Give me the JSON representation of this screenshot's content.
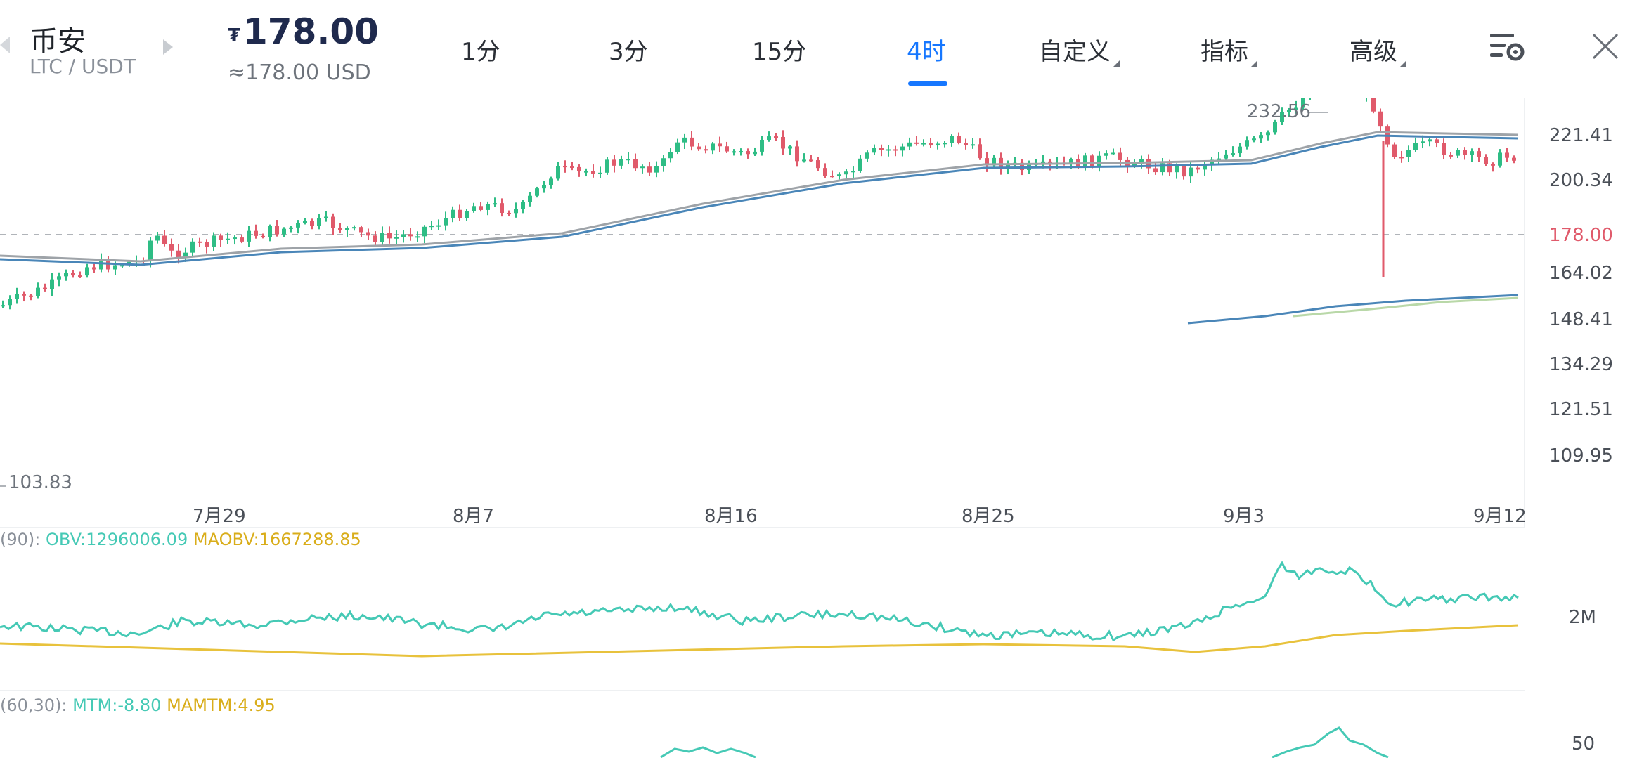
{
  "header": {
    "exchange": "币安",
    "pair": "LTC / USDT",
    "currency_symbol": "₮",
    "price": "178.00",
    "price_usd": "≈178.00 USD",
    "tabs": [
      {
        "label": "1分",
        "active": false
      },
      {
        "label": "3分",
        "active": false
      },
      {
        "label": "15分",
        "active": false
      },
      {
        "label": "4时",
        "active": true
      },
      {
        "label": "自定义",
        "active": false,
        "dropdown": true
      },
      {
        "label": "指标",
        "active": false,
        "dropdown": true
      },
      {
        "label": "高级",
        "active": false,
        "dropdown": true
      }
    ],
    "icons": [
      "chart-settings-icon",
      "close-icon"
    ]
  },
  "main_chart": {
    "y_ticks": [
      "221.41",
      "200.34",
      "178.00",
      "164.02",
      "148.41",
      "134.29",
      "121.51",
      "109.95"
    ],
    "x_ticks": [
      "7月29",
      "8月7",
      "8月16",
      "8月25",
      "9月3",
      "9月12"
    ],
    "high_label": "232.56",
    "low_label": "103.83",
    "current_price_tag": "178.00",
    "colors": {
      "up": "#2ebd85",
      "down": "#e05a6b",
      "ma_gray": "#9ea3a8",
      "ma_blue": "#4a86b8",
      "ma_long": "#4a86b8",
      "ma_green": "#b9d8a8",
      "price_tag": "#e05a6b"
    }
  },
  "obv": {
    "label_prefix": "(90):",
    "obv_label": "OBV:1296006.09",
    "maobv_label": "MAOBV:1667288.85",
    "y_tick": "2M",
    "colors": {
      "obv": "#45c9b5",
      "maobv": "#e8c23c"
    }
  },
  "mtm": {
    "label_prefix": "(60,30):",
    "mtm_label": "MTM:-8.80",
    "mamtm_label": "MAMTM:4.95",
    "y_tick": "50",
    "colors": {
      "mtm": "#45c9b5",
      "mamtm": "#e8c23c"
    }
  }
}
